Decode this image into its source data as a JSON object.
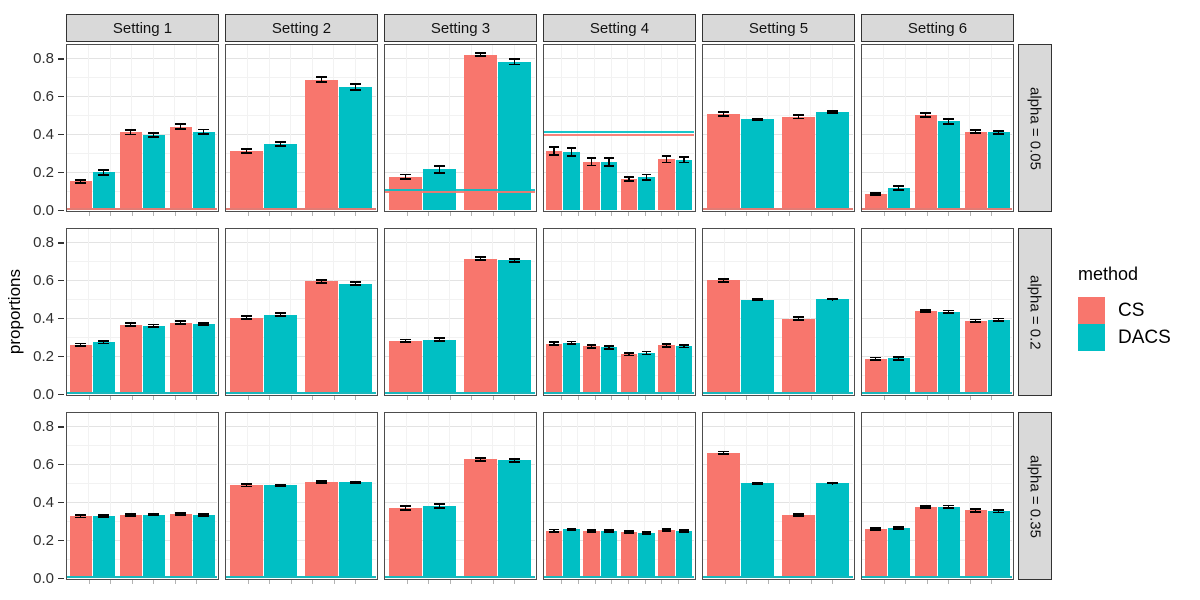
{
  "y_axis": {
    "title": "proportions",
    "tick_labels": [
      "0.0",
      "0.2",
      "0.4",
      "0.6",
      "0.8"
    ],
    "tick_values": [
      0,
      0.2,
      0.4,
      0.6,
      0.8
    ]
  },
  "legend": {
    "title": "method",
    "items": [
      {
        "label": "CS",
        "color": "#F8766D"
      },
      {
        "label": "DACS",
        "color": "#00BFC4"
      }
    ]
  },
  "colors": {
    "cs": "#F8766D",
    "dacs": "#00BFC4",
    "strip_bg": "#d9d9d9",
    "panel_border": "#4d4d4d",
    "grid_major": "#e3e3e3",
    "grid_minor": "#f2f2f2",
    "error_bar": "#000000"
  },
  "chart_data": {
    "type": "bar",
    "title": "",
    "ylabel": "proportions",
    "xlabel": "",
    "ylim": [
      0,
      0.87
    ],
    "y_ticks": [
      0,
      0.2,
      0.4,
      0.6,
      0.8
    ],
    "grid": true,
    "legend_position": "right",
    "series": [
      "CS",
      "DACS"
    ],
    "facet_cols": [
      "Setting 1",
      "Setting 2",
      "Setting 3",
      "Setting 4",
      "Setting 5",
      "Setting 6"
    ],
    "facet_rows": [
      "alpha = 0.05",
      "alpha = 0.2",
      "alpha = 0.35"
    ],
    "panels": [
      {
        "row": "alpha = 0.05",
        "col": "Setting 1",
        "groups": [
          {
            "cs": [
              0.152,
              0.008
            ],
            "dacs": [
              0.198,
              0.012
            ]
          },
          {
            "cs": [
              0.41,
              0.012
            ],
            "dacs": [
              0.395,
              0.012
            ]
          },
          {
            "cs": [
              0.44,
              0.012
            ],
            "dacs": [
              0.412,
              0.012
            ]
          }
        ],
        "hlines": [
          {
            "method": "DACS",
            "value": 0.005
          },
          {
            "method": "CS",
            "value": 0.005
          }
        ]
      },
      {
        "row": "alpha = 0.05",
        "col": "Setting 2",
        "groups": [
          {
            "cs": [
              0.31,
              0.01
            ],
            "dacs": [
              0.348,
              0.012
            ]
          },
          {
            "cs": [
              0.688,
              0.012
            ],
            "dacs": [
              0.648,
              0.015
            ]
          }
        ],
        "hlines": [
          {
            "method": "DACS",
            "value": 0.005
          },
          {
            "method": "CS",
            "value": 0.005
          }
        ]
      },
      {
        "row": "alpha = 0.05",
        "col": "Setting 3",
        "groups": [
          {
            "cs": [
              0.175,
              0.012
            ],
            "dacs": [
              0.215,
              0.018
            ]
          },
          {
            "cs": [
              0.818,
              0.008
            ],
            "dacs": [
              0.782,
              0.015
            ]
          }
        ],
        "hlines": [
          {
            "method": "CS",
            "value": 0.095
          },
          {
            "method": "DACS",
            "value": 0.107
          }
        ]
      },
      {
        "row": "alpha = 0.05",
        "col": "Setting 4",
        "groups": [
          {
            "cs": [
              0.312,
              0.02
            ],
            "dacs": [
              0.305,
              0.02
            ]
          },
          {
            "cs": [
              0.255,
              0.02
            ],
            "dacs": [
              0.253,
              0.022
            ]
          },
          {
            "cs": [
              0.163,
              0.012
            ],
            "dacs": [
              0.172,
              0.015
            ]
          },
          {
            "cs": [
              0.268,
              0.018
            ],
            "dacs": [
              0.265,
              0.015
            ]
          }
        ],
        "hlines": [
          {
            "method": "CS",
            "value": 0.397
          },
          {
            "method": "DACS",
            "value": 0.41
          }
        ]
      },
      {
        "row": "alpha = 0.05",
        "col": "Setting 5",
        "groups": [
          {
            "cs": [
              0.505,
              0.01
            ],
            "dacs": [
              0.478,
              0.004
            ]
          },
          {
            "cs": [
              0.492,
              0.01
            ],
            "dacs": [
              0.517,
              0.004
            ]
          }
        ],
        "hlines": [
          {
            "method": "DACS",
            "value": 0.005
          },
          {
            "method": "CS",
            "value": 0.006
          }
        ]
      },
      {
        "row": "alpha = 0.05",
        "col": "Setting 6",
        "groups": [
          {
            "cs": [
              0.085,
              0.006
            ],
            "dacs": [
              0.117,
              0.01
            ]
          },
          {
            "cs": [
              0.5,
              0.01
            ],
            "dacs": [
              0.467,
              0.012
            ]
          },
          {
            "cs": [
              0.412,
              0.008
            ],
            "dacs": [
              0.41,
              0.008
            ]
          }
        ],
        "hlines": [
          {
            "method": "DACS",
            "value": 0.005
          },
          {
            "method": "CS",
            "value": 0.006
          }
        ]
      },
      {
        "row": "alpha = 0.2",
        "col": "Setting 1",
        "groups": [
          {
            "cs": [
              0.26,
              0.006
            ],
            "dacs": [
              0.272,
              0.006
            ]
          },
          {
            "cs": [
              0.366,
              0.007
            ],
            "dacs": [
              0.36,
              0.006
            ]
          },
          {
            "cs": [
              0.376,
              0.007
            ],
            "dacs": [
              0.369,
              0.006
            ]
          }
        ],
        "hlines": [
          {
            "method": "CS",
            "value": 0.0035
          },
          {
            "method": "DACS",
            "value": 0.006
          }
        ]
      },
      {
        "row": "alpha = 0.2",
        "col": "Setting 2",
        "groups": [
          {
            "cs": [
              0.403,
              0.008
            ],
            "dacs": [
              0.418,
              0.007
            ]
          },
          {
            "cs": [
              0.595,
              0.008
            ],
            "dacs": [
              0.582,
              0.008
            ]
          }
        ],
        "hlines": [
          {
            "method": "CS",
            "value": 0.0035
          },
          {
            "method": "DACS",
            "value": 0.006
          }
        ]
      },
      {
        "row": "alpha = 0.2",
        "col": "Setting 3",
        "groups": [
          {
            "cs": [
              0.281,
              0.006
            ],
            "dacs": [
              0.287,
              0.007
            ]
          },
          {
            "cs": [
              0.714,
              0.007
            ],
            "dacs": [
              0.705,
              0.007
            ]
          }
        ],
        "hlines": [
          {
            "method": "CS",
            "value": 0.0035
          },
          {
            "method": "DACS",
            "value": 0.006
          }
        ]
      },
      {
        "row": "alpha = 0.2",
        "col": "Setting 4",
        "groups": [
          {
            "cs": [
              0.266,
              0.008
            ],
            "dacs": [
              0.27,
              0.007
            ]
          },
          {
            "cs": [
              0.251,
              0.008
            ],
            "dacs": [
              0.247,
              0.008
            ]
          },
          {
            "cs": [
              0.21,
              0.007
            ],
            "dacs": [
              0.216,
              0.008
            ]
          },
          {
            "cs": [
              0.257,
              0.008
            ],
            "dacs": [
              0.252,
              0.007
            ]
          }
        ],
        "hlines": [
          {
            "method": "CS",
            "value": 0.0035
          },
          {
            "method": "DACS",
            "value": 0.006
          }
        ]
      },
      {
        "row": "alpha = 0.2",
        "col": "Setting 5",
        "groups": [
          {
            "cs": [
              0.6,
              0.008
            ],
            "dacs": [
              0.498,
              0.002
            ]
          },
          {
            "cs": [
              0.398,
              0.008
            ],
            "dacs": [
              0.5,
              0.002
            ]
          }
        ],
        "hlines": [
          {
            "method": "CS",
            "value": 0.0035
          },
          {
            "method": "DACS",
            "value": 0.006
          }
        ]
      },
      {
        "row": "alpha = 0.2",
        "col": "Setting 6",
        "groups": [
          {
            "cs": [
              0.185,
              0.007
            ],
            "dacs": [
              0.188,
              0.007
            ]
          },
          {
            "cs": [
              0.438,
              0.007
            ],
            "dacs": [
              0.433,
              0.007
            ]
          },
          {
            "cs": [
              0.386,
              0.007
            ],
            "dacs": [
              0.391,
              0.007
            ]
          }
        ],
        "hlines": [
          {
            "method": "CS",
            "value": 0.0035
          },
          {
            "method": "DACS",
            "value": 0.006
          }
        ]
      },
      {
        "row": "alpha = 0.35",
        "col": "Setting 1",
        "groups": [
          {
            "cs": [
              0.325,
              0.006
            ],
            "dacs": [
              0.327,
              0.004
            ]
          },
          {
            "cs": [
              0.333,
              0.005
            ],
            "dacs": [
              0.334,
              0.004
            ]
          },
          {
            "cs": [
              0.336,
              0.005
            ],
            "dacs": [
              0.331,
              0.005
            ]
          }
        ],
        "hlines": [
          {
            "method": "CS",
            "value": 0.0035
          },
          {
            "method": "DACS",
            "value": 0.006
          }
        ]
      },
      {
        "row": "alpha = 0.35",
        "col": "Setting 2",
        "groups": [
          {
            "cs": [
              0.488,
              0.006
            ],
            "dacs": [
              0.489,
              0.004
            ]
          },
          {
            "cs": [
              0.506,
              0.007
            ],
            "dacs": [
              0.505,
              0.004
            ]
          }
        ],
        "hlines": [
          {
            "method": "CS",
            "value": 0.0035
          },
          {
            "method": "DACS",
            "value": 0.006
          }
        ]
      },
      {
        "row": "alpha = 0.35",
        "col": "Setting 3",
        "groups": [
          {
            "cs": [
              0.37,
              0.01
            ],
            "dacs": [
              0.381,
              0.01
            ]
          },
          {
            "cs": [
              0.625,
              0.008
            ],
            "dacs": [
              0.62,
              0.007
            ]
          }
        ],
        "hlines": [
          {
            "method": "CS",
            "value": 0.0035
          },
          {
            "method": "DACS",
            "value": 0.006
          }
        ]
      },
      {
        "row": "alpha = 0.35",
        "col": "Setting 4",
        "groups": [
          {
            "cs": [
              0.25,
              0.006
            ],
            "dacs": [
              0.256,
              0.005
            ]
          },
          {
            "cs": [
              0.246,
              0.005
            ],
            "dacs": [
              0.249,
              0.005
            ]
          },
          {
            "cs": [
              0.244,
              0.005
            ],
            "dacs": [
              0.238,
              0.005
            ]
          },
          {
            "cs": [
              0.253,
              0.006
            ],
            "dacs": [
              0.248,
              0.005
            ]
          }
        ],
        "hlines": [
          {
            "method": "CS",
            "value": 0.0035
          },
          {
            "method": "DACS",
            "value": 0.006
          }
        ]
      },
      {
        "row": "alpha = 0.35",
        "col": "Setting 5",
        "groups": [
          {
            "cs": [
              0.66,
              0.007
            ],
            "dacs": [
              0.499,
              0.002
            ]
          },
          {
            "cs": [
              0.331,
              0.006
            ],
            "dacs": [
              0.5,
              0.002
            ]
          }
        ],
        "hlines": [
          {
            "method": "CS",
            "value": 0.0035
          },
          {
            "method": "DACS",
            "value": 0.006
          }
        ]
      },
      {
        "row": "alpha = 0.35",
        "col": "Setting 6",
        "groups": [
          {
            "cs": [
              0.257,
              0.006
            ],
            "dacs": [
              0.263,
              0.006
            ]
          },
          {
            "cs": [
              0.375,
              0.006
            ],
            "dacs": [
              0.376,
              0.006
            ]
          },
          {
            "cs": [
              0.357,
              0.007
            ],
            "dacs": [
              0.352,
              0.007
            ]
          }
        ],
        "hlines": [
          {
            "method": "CS",
            "value": 0.0035
          },
          {
            "method": "DACS",
            "value": 0.006
          }
        ]
      }
    ]
  }
}
